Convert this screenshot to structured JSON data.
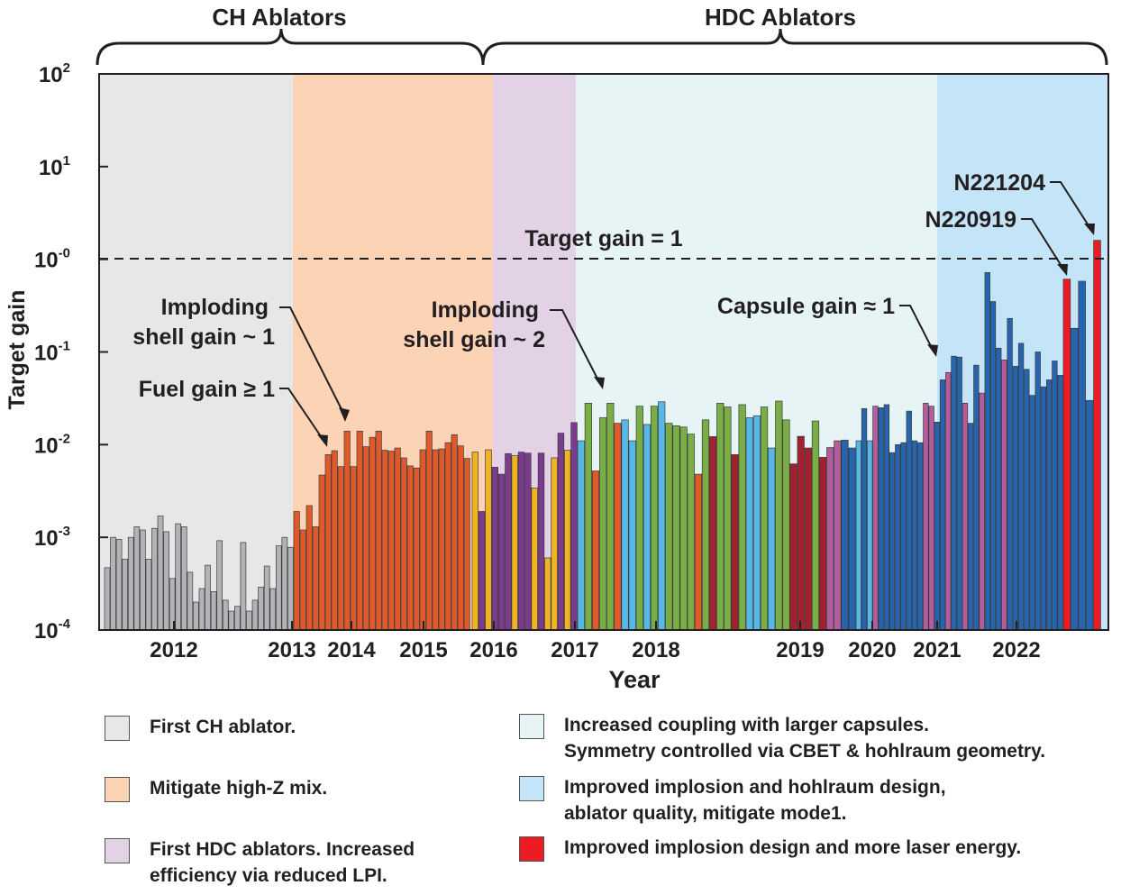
{
  "chart_data": {
    "type": "bar",
    "yscale": "log",
    "ylim": [
      0.0001,
      100
    ],
    "xlabel": "Year",
    "ylabel": "Target gain",
    "y_ticks": [
      {
        "base": "10",
        "exp": "2"
      },
      {
        "base": "10",
        "exp": "1"
      },
      {
        "base": "10",
        "exp": "-0"
      },
      {
        "base": "10",
        "exp": "-1"
      },
      {
        "base": "10",
        "exp": "-2"
      },
      {
        "base": "10",
        "exp": "-3"
      },
      {
        "base": "10",
        "exp": "-4"
      }
    ],
    "x_ticks": [
      "2012",
      "2013",
      "2014",
      "2015",
      "2016",
      "2017",
      "2018",
      "2019",
      "2020",
      "2021",
      "2022"
    ],
    "era_labels": [
      "CH Ablators",
      "HDC Ablators"
    ],
    "reference_line": {
      "value": 1,
      "label": "Target gain = 1",
      "style": "dashed"
    },
    "annotations": [
      {
        "text": "Imploding\nshell gain ~ 1"
      },
      {
        "text": "Fuel gain ≥ 1"
      },
      {
        "text": "Imploding\nshell gain ~ 2"
      },
      {
        "text": "Capsule gain ≈ 1"
      },
      {
        "text": "N221204"
      },
      {
        "text": "N220919"
      }
    ],
    "phase_colors": {
      "ch": "#e7e7e8",
      "highz": "#fdd3b6",
      "hdc": "#e3d1e6",
      "coupling": "#e6f4f5",
      "improved": "#c3e5f7"
    },
    "bar_colors": {
      "gray": "#b1b3b6",
      "orange": "#e0592a",
      "yellow": "#f0b323",
      "purple": "#7b3c8e",
      "green": "#79ad45",
      "lightblue": "#57b7e6",
      "darkred": "#a3202f",
      "blue": "#2664ad",
      "pink": "#b45d9e",
      "red": "#ed1c24"
    },
    "series": [
      {
        "values": [
          0.00047,
          0.001,
          0.00095,
          0.00058,
          0.001,
          0.0013,
          0.0012,
          0.00058,
          0.00125,
          0.0017,
          0.00115,
          0.00036,
          0.0014,
          0.0013,
          0.00042,
          0.0002,
          0.00028,
          0.0005,
          0.00026,
          0.00092,
          0.00021,
          0.00016,
          0.00018,
          0.00088,
          0.00016,
          0.00021,
          0.00029,
          0.00049,
          0.00028,
          0.00081,
          0.001,
          0.00078
        ],
        "colors": [
          "gray",
          "gray",
          "gray",
          "gray",
          "gray",
          "gray",
          "gray",
          "gray",
          "gray",
          "gray",
          "gray",
          "gray",
          "gray",
          "gray",
          "gray",
          "gray",
          "gray",
          "gray",
          "gray",
          "gray",
          "gray",
          "gray",
          "gray",
          "gray",
          "gray",
          "gray",
          "gray",
          "gray",
          "gray",
          "gray",
          "gray",
          "gray"
        ]
      },
      {
        "values": [
          0.0019,
          0.0012,
          0.0022,
          0.0013,
          0.0047,
          0.0078,
          0.0086,
          0.0058,
          0.014,
          0.0058,
          0.014,
          0.0095,
          0.012,
          0.014,
          0.0087,
          0.0085,
          0.0092,
          0.0072,
          0.0059,
          0.0056,
          0.0088,
          0.014,
          0.0088,
          0.009,
          0.0105,
          0.0128,
          0.0097,
          0.0071
        ],
        "colors": [
          "orange",
          "orange",
          "orange",
          "orange",
          "orange",
          "orange",
          "orange",
          "orange",
          "orange",
          "orange",
          "orange",
          "orange",
          "orange",
          "orange",
          "orange",
          "orange",
          "orange",
          "orange",
          "orange",
          "orange",
          "orange",
          "orange",
          "orange",
          "orange",
          "orange",
          "orange",
          "orange",
          "orange"
        ]
      },
      {
        "values": [
          0.0083,
          0.0019,
          0.0088,
          0.0057,
          0.0048,
          0.008,
          0.0076,
          0.0083,
          0.0081,
          0.0034,
          0.0081,
          0.0006,
          0.0072,
          0.0133,
          0.0087,
          0.0173
        ],
        "colors": [
          "yellow",
          "purple",
          "yellow",
          "purple",
          "purple",
          "purple",
          "yellow",
          "purple",
          "purple",
          "yellow",
          "purple",
          "yellow",
          "yellow",
          "purple",
          "yellow",
          "purple"
        ]
      },
      {
        "values": [
          0.011,
          0.028,
          0.0052,
          0.0195,
          0.028,
          0.017,
          0.0185,
          0.011,
          0.026,
          0.0165,
          0.026,
          0.029,
          0.017,
          0.016,
          0.0155,
          0.013,
          0.0048,
          0.0185,
          0.0122,
          0.028,
          0.0255,
          0.0078,
          0.027,
          0.0195,
          0.0205,
          0.0255,
          0.0092,
          0.0295,
          0.0185,
          0.0062,
          0.0123,
          0.0092,
          0.018,
          0.0073,
          0.0093,
          0.011,
          0.0112,
          0.0092
        ],
        "colors": [
          "lightblue",
          "green",
          "orange",
          "green",
          "green",
          "orange",
          "lightblue",
          "lightblue",
          "green",
          "lightblue",
          "green",
          "lightblue",
          "green",
          "green",
          "green",
          "green",
          "orange",
          "green",
          "darkred",
          "green",
          "green",
          "darkred",
          "green",
          "lightblue",
          "lightblue",
          "green",
          "lightblue",
          "green",
          "green",
          "darkred",
          "darkred",
          "darkred",
          "green",
          "darkred",
          "pink",
          "pink",
          "blue",
          "blue"
        ]
      },
      {
        "values": [
          0.011,
          0.0245,
          0.011,
          0.026,
          0.025,
          0.027,
          0.0082,
          0.01,
          0.0105,
          0.023,
          0.011,
          0.0105,
          0.028,
          0.026,
          0.0175,
          0.05,
          0.06,
          0.09,
          0.088,
          0.028,
          0.017,
          0.072,
          0.036,
          0.72,
          0.35,
          0.11,
          0.082,
          0.23,
          0.07,
          0.124,
          0.065,
          0.034,
          0.1,
          0.042,
          0.05,
          0.08,
          0.056
        ],
        "colors": [
          "lightblue",
          "blue",
          "lightblue",
          "pink",
          "blue",
          "blue",
          "blue",
          "blue",
          "blue",
          "blue",
          "blue",
          "blue",
          "pink",
          "pink",
          "blue",
          "blue",
          "pink",
          "blue",
          "blue",
          "pink",
          "blue",
          "blue",
          "pink",
          "blue",
          "blue",
          "blue",
          "pink",
          "blue",
          "blue",
          "blue",
          "blue",
          "blue",
          "blue",
          "blue",
          "blue",
          "blue",
          "blue"
        ]
      },
      {
        "values": [
          0.61,
          0.18,
          0.58,
          0.03,
          1.6
        ],
        "colors": [
          "red",
          "blue",
          "blue",
          "blue",
          "red"
        ]
      }
    ]
  },
  "legend": [
    {
      "text": "First CH ablator.",
      "color_key": "ch"
    },
    {
      "text": "Mitigate high-Z mix.",
      "color_key": "highz"
    },
    {
      "text": "First HDC ablators. Increased\nefficiency via reduced LPI.",
      "color_key": "hdc"
    },
    {
      "text": "Increased coupling with larger capsules.\nSymmetry controlled via CBET & hohlraum geometry.",
      "color_key": "coupling"
    },
    {
      "text": "Improved implosion and hohlraum design,\nablator quality, mitigate mode1.",
      "color_key": "improved"
    },
    {
      "text": "Improved implosion design and more laser energy.",
      "color_key": "red_bar"
    }
  ]
}
